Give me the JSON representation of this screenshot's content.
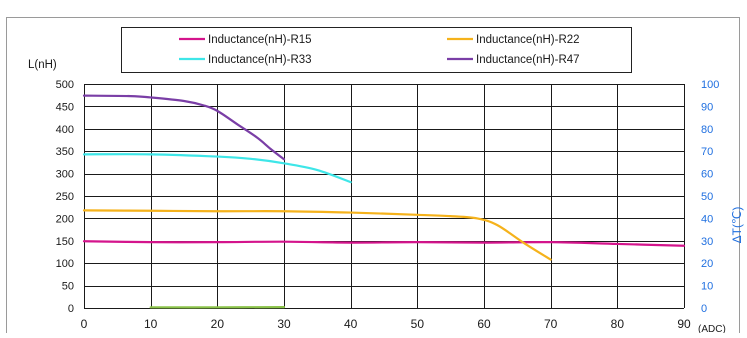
{
  "chart_data": {
    "type": "line",
    "ylabel": "L(nH)",
    "y2label": "ΔT(℃)",
    "xunit": "(ADC)",
    "xlim": [
      0,
      90
    ],
    "ylim": [
      0,
      500
    ],
    "y2lim": [
      0,
      100
    ],
    "xticks": [
      0,
      10,
      20,
      30,
      40,
      50,
      60,
      70,
      80,
      90
    ],
    "yticks": [
      0,
      50,
      100,
      150,
      200,
      250,
      300,
      350,
      400,
      450,
      500
    ],
    "y2ticks": [
      0,
      10,
      20,
      30,
      40,
      50,
      60,
      70,
      80,
      90,
      100
    ],
    "grid": true,
    "legend_position": "top",
    "series": [
      {
        "name": "Inductance(nH)-R15",
        "color": "#d4148c",
        "axis": "left",
        "points": [
          [
            0,
            149
          ],
          [
            10,
            147
          ],
          [
            20,
            147
          ],
          [
            30,
            148
          ],
          [
            40,
            146
          ],
          [
            50,
            147
          ],
          [
            60,
            146
          ],
          [
            70,
            147
          ],
          [
            80,
            143
          ],
          [
            90,
            139
          ]
        ]
      },
      {
        "name": "Inductance(nH)-R22",
        "color": "#f5b21b",
        "axis": "left",
        "points": [
          [
            0,
            218
          ],
          [
            10,
            217
          ],
          [
            20,
            216
          ],
          [
            30,
            216
          ],
          [
            40,
            213
          ],
          [
            50,
            208
          ],
          [
            55,
            205
          ],
          [
            59,
            200
          ],
          [
            62,
            185
          ],
          [
            66,
            145
          ],
          [
            70,
            108
          ]
        ]
      },
      {
        "name": "Inductance(nH)-R33",
        "color": "#3ee6e8",
        "axis": "left",
        "points": [
          [
            0,
            343
          ],
          [
            10,
            343
          ],
          [
            20,
            338
          ],
          [
            25,
            333
          ],
          [
            30,
            323
          ],
          [
            35,
            308
          ],
          [
            40,
            281
          ]
        ]
      },
      {
        "name": "Inductance(nH)-R47",
        "color": "#7a3ea6",
        "axis": "left",
        "points": [
          [
            0,
            474
          ],
          [
            7,
            473
          ],
          [
            10,
            470
          ],
          [
            15,
            462
          ],
          [
            18,
            452
          ],
          [
            20,
            440
          ],
          [
            23,
            410
          ],
          [
            26,
            380
          ],
          [
            28,
            355
          ],
          [
            30,
            332
          ]
        ]
      },
      {
        "color": "#8bc34a",
        "axis": "right",
        "points": [
          [
            10,
            0.3
          ],
          [
            20,
            0.3
          ],
          [
            30,
            0.4
          ]
        ]
      }
    ]
  }
}
